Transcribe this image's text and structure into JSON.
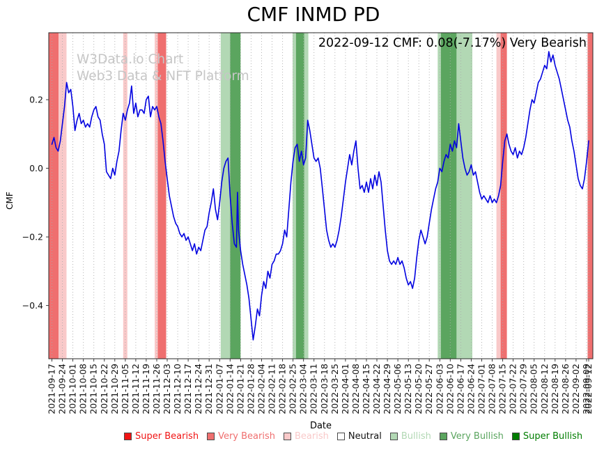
{
  "chart_data": {
    "type": "line",
    "title": "CMF INMD PD",
    "subtitle": "2022-09-12 CMF: 0.08(-7.17%) Very Bearish",
    "watermark": [
      "W3Data.io Chart",
      "Web3 Data & NFT Platform"
    ],
    "xlabel": "Date",
    "ylabel": "CMF",
    "series_name": "CMF",
    "x_range": [
      -1.5,
      258
    ],
    "y_range": [
      -0.555,
      0.395
    ],
    "y_ticks": [
      {
        "value": 0.2,
        "label": "0.2"
      },
      {
        "value": 0.0,
        "label": "0.0"
      },
      {
        "value": -0.2,
        "label": "−0.2"
      },
      {
        "value": -0.4,
        "label": "−0.4"
      }
    ],
    "x_ticks": [
      [
        0,
        "2021-09-17"
      ],
      [
        5,
        "2021-09-24"
      ],
      [
        10,
        "2021-10-01"
      ],
      [
        15,
        "2021-10-08"
      ],
      [
        20,
        "2021-10-15"
      ],
      [
        25,
        "2021-10-22"
      ],
      [
        30,
        "2021-10-29"
      ],
      [
        35,
        "2021-11-05"
      ],
      [
        40,
        "2021-11-12"
      ],
      [
        45,
        "2021-11-19"
      ],
      [
        50,
        "2021-11-26"
      ],
      [
        55,
        "2021-12-03"
      ],
      [
        60,
        "2021-12-10"
      ],
      [
        65,
        "2021-12-17"
      ],
      [
        70,
        "2021-12-24"
      ],
      [
        75,
        "2021-12-31"
      ],
      [
        80,
        "2022-01-07"
      ],
      [
        85,
        "2022-01-14"
      ],
      [
        90,
        "2022-01-21"
      ],
      [
        95,
        "2022-01-28"
      ],
      [
        100,
        "2022-02-04"
      ],
      [
        105,
        "2022-02-11"
      ],
      [
        110,
        "2022-02-18"
      ],
      [
        115,
        "2022-02-25"
      ],
      [
        120,
        "2022-03-04"
      ],
      [
        125,
        "2022-03-11"
      ],
      [
        130,
        "2022-03-18"
      ],
      [
        135,
        "2022-03-25"
      ],
      [
        140,
        "2022-04-01"
      ],
      [
        145,
        "2022-04-08"
      ],
      [
        150,
        "2022-04-15"
      ],
      [
        155,
        "2022-04-22"
      ],
      [
        160,
        "2022-04-29"
      ],
      [
        165,
        "2022-05-06"
      ],
      [
        170,
        "2022-05-13"
      ],
      [
        175,
        "2022-05-20"
      ],
      [
        180,
        "2022-05-27"
      ],
      [
        185,
        "2022-06-03"
      ],
      [
        190,
        "2022-06-10"
      ],
      [
        195,
        "2022-06-17"
      ],
      [
        200,
        "2022-06-24"
      ],
      [
        205,
        "2022-07-01"
      ],
      [
        210,
        "2022-07-08"
      ],
      [
        215,
        "2022-07-15"
      ],
      [
        220,
        "2022-07-22"
      ],
      [
        225,
        "2022-07-29"
      ],
      [
        230,
        "2022-08-05"
      ],
      [
        235,
        "2022-08-12"
      ],
      [
        240,
        "2022-08-19"
      ],
      [
        245,
        "2022-08-26"
      ],
      [
        250,
        "2022-09-02"
      ],
      [
        255,
        "2022-09-09"
      ],
      [
        256,
        "2022-09-12"
      ]
    ],
    "line": {
      "color": "#0000e0",
      "width": 1.6
    },
    "grid": {
      "vertical": true,
      "horizontal": false,
      "color": "#ababab"
    },
    "points": [
      [
        0,
        0.07
      ],
      [
        1,
        0.09
      ],
      [
        2,
        0.06
      ],
      [
        3,
        0.05
      ],
      [
        4,
        0.08
      ],
      [
        5,
        0.13
      ],
      [
        6,
        0.18
      ],
      [
        7,
        0.25
      ],
      [
        8,
        0.22
      ],
      [
        9,
        0.23
      ],
      [
        10,
        0.18
      ],
      [
        11,
        0.11
      ],
      [
        12,
        0.14
      ],
      [
        13,
        0.16
      ],
      [
        14,
        0.13
      ],
      [
        15,
        0.14
      ],
      [
        16,
        0.12
      ],
      [
        17,
        0.13
      ],
      [
        18,
        0.12
      ],
      [
        19,
        0.15
      ],
      [
        20,
        0.17
      ],
      [
        21,
        0.18
      ],
      [
        22,
        0.15
      ],
      [
        23,
        0.14
      ],
      [
        24,
        0.1
      ],
      [
        25,
        0.07
      ],
      [
        26,
        -0.01
      ],
      [
        27,
        -0.02
      ],
      [
        28,
        -0.03
      ],
      [
        29,
        0.0
      ],
      [
        30,
        -0.02
      ],
      [
        31,
        0.02
      ],
      [
        32,
        0.05
      ],
      [
        33,
        0.11
      ],
      [
        34,
        0.16
      ],
      [
        35,
        0.14
      ],
      [
        36,
        0.17
      ],
      [
        37,
        0.19
      ],
      [
        38,
        0.24
      ],
      [
        39,
        0.16
      ],
      [
        40,
        0.19
      ],
      [
        41,
        0.15
      ],
      [
        42,
        0.17
      ],
      [
        43,
        0.17
      ],
      [
        44,
        0.16
      ],
      [
        45,
        0.2
      ],
      [
        46,
        0.21
      ],
      [
        47,
        0.15
      ],
      [
        48,
        0.18
      ],
      [
        49,
        0.17
      ],
      [
        50,
        0.18
      ],
      [
        51,
        0.15
      ],
      [
        52,
        0.13
      ],
      [
        53,
        0.08
      ],
      [
        54,
        0.02
      ],
      [
        55,
        -0.03
      ],
      [
        56,
        -0.08
      ],
      [
        57,
        -0.11
      ],
      [
        58,
        -0.14
      ],
      [
        59,
        -0.16
      ],
      [
        60,
        -0.17
      ],
      [
        61,
        -0.19
      ],
      [
        62,
        -0.2
      ],
      [
        63,
        -0.19
      ],
      [
        64,
        -0.21
      ],
      [
        65,
        -0.2
      ],
      [
        66,
        -0.22
      ],
      [
        67,
        -0.24
      ],
      [
        68,
        -0.22
      ],
      [
        69,
        -0.25
      ],
      [
        70,
        -0.23
      ],
      [
        71,
        -0.24
      ],
      [
        72,
        -0.21
      ],
      [
        73,
        -0.18
      ],
      [
        74,
        -0.17
      ],
      [
        75,
        -0.13
      ],
      [
        76,
        -0.1
      ],
      [
        77,
        -0.06
      ],
      [
        78,
        -0.12
      ],
      [
        79,
        -0.15
      ],
      [
        80,
        -0.1
      ],
      [
        81,
        -0.04
      ],
      [
        82,
        0.0
      ],
      [
        83,
        0.02
      ],
      [
        84,
        0.03
      ],
      [
        85,
        -0.08
      ],
      [
        86,
        -0.16
      ],
      [
        87,
        -0.22
      ],
      [
        88,
        -0.23
      ],
      [
        88.5,
        -0.07
      ],
      [
        89,
        -0.18
      ],
      [
        90,
        -0.24
      ],
      [
        91,
        -0.28
      ],
      [
        92,
        -0.31
      ],
      [
        93,
        -0.34
      ],
      [
        94,
        -0.38
      ],
      [
        95,
        -0.44
      ],
      [
        96,
        -0.5
      ],
      [
        97,
        -0.46
      ],
      [
        98,
        -0.41
      ],
      [
        99,
        -0.43
      ],
      [
        100,
        -0.37
      ],
      [
        101,
        -0.33
      ],
      [
        102,
        -0.35
      ],
      [
        103,
        -0.3
      ],
      [
        104,
        -0.32
      ],
      [
        105,
        -0.28
      ],
      [
        106,
        -0.27
      ],
      [
        107,
        -0.25
      ],
      [
        108,
        -0.25
      ],
      [
        109,
        -0.24
      ],
      [
        110,
        -0.22
      ],
      [
        111,
        -0.18
      ],
      [
        112,
        -0.2
      ],
      [
        113,
        -0.12
      ],
      [
        114,
        -0.04
      ],
      [
        115,
        0.02
      ],
      [
        116,
        0.06
      ],
      [
        117,
        0.07
      ],
      [
        118,
        0.02
      ],
      [
        119,
        0.05
      ],
      [
        120,
        0.01
      ],
      [
        121,
        0.03
      ],
      [
        122,
        0.14
      ],
      [
        123,
        0.11
      ],
      [
        124,
        0.07
      ],
      [
        125,
        0.03
      ],
      [
        126,
        0.02
      ],
      [
        127,
        0.03
      ],
      [
        128,
        0.0
      ],
      [
        129,
        -0.06
      ],
      [
        130,
        -0.12
      ],
      [
        131,
        -0.18
      ],
      [
        132,
        -0.21
      ],
      [
        133,
        -0.23
      ],
      [
        134,
        -0.22
      ],
      [
        135,
        -0.23
      ],
      [
        136,
        -0.21
      ],
      [
        137,
        -0.18
      ],
      [
        138,
        -0.14
      ],
      [
        139,
        -0.09
      ],
      [
        140,
        -0.04
      ],
      [
        141,
        0.0
      ],
      [
        142,
        0.04
      ],
      [
        143,
        0.01
      ],
      [
        144,
        0.05
      ],
      [
        145,
        0.08
      ],
      [
        146,
        0.0
      ],
      [
        147,
        -0.06
      ],
      [
        148,
        -0.05
      ],
      [
        149,
        -0.07
      ],
      [
        150,
        -0.04
      ],
      [
        151,
        -0.07
      ],
      [
        152,
        -0.03
      ],
      [
        153,
        -0.06
      ],
      [
        154,
        -0.02
      ],
      [
        155,
        -0.05
      ],
      [
        156,
        -0.01
      ],
      [
        157,
        -0.04
      ],
      [
        158,
        -0.11
      ],
      [
        159,
        -0.18
      ],
      [
        160,
        -0.24
      ],
      [
        161,
        -0.27
      ],
      [
        162,
        -0.28
      ],
      [
        163,
        -0.27
      ],
      [
        164,
        -0.28
      ],
      [
        165,
        -0.26
      ],
      [
        166,
        -0.28
      ],
      [
        167,
        -0.27
      ],
      [
        168,
        -0.29
      ],
      [
        169,
        -0.32
      ],
      [
        170,
        -0.34
      ],
      [
        171,
        -0.33
      ],
      [
        172,
        -0.35
      ],
      [
        173,
        -0.32
      ],
      [
        174,
        -0.26
      ],
      [
        175,
        -0.21
      ],
      [
        176,
        -0.18
      ],
      [
        177,
        -0.2
      ],
      [
        178,
        -0.22
      ],
      [
        179,
        -0.2
      ],
      [
        180,
        -0.16
      ],
      [
        181,
        -0.12
      ],
      [
        182,
        -0.09
      ],
      [
        183,
        -0.06
      ],
      [
        184,
        -0.04
      ],
      [
        185,
        0.0
      ],
      [
        186,
        -0.01
      ],
      [
        187,
        0.02
      ],
      [
        188,
        0.04
      ],
      [
        189,
        0.03
      ],
      [
        190,
        0.07
      ],
      [
        191,
        0.05
      ],
      [
        192,
        0.08
      ],
      [
        193,
        0.06
      ],
      [
        194,
        0.13
      ],
      [
        195,
        0.08
      ],
      [
        196,
        0.03
      ],
      [
        197,
        0.0
      ],
      [
        198,
        -0.02
      ],
      [
        199,
        -0.01
      ],
      [
        200,
        0.01
      ],
      [
        201,
        -0.02
      ],
      [
        202,
        -0.01
      ],
      [
        203,
        -0.04
      ],
      [
        204,
        -0.07
      ],
      [
        205,
        -0.09
      ],
      [
        206,
        -0.08
      ],
      [
        207,
        -0.09
      ],
      [
        208,
        -0.1
      ],
      [
        209,
        -0.08
      ],
      [
        210,
        -0.1
      ],
      [
        211,
        -0.09
      ],
      [
        212,
        -0.1
      ],
      [
        213,
        -0.08
      ],
      [
        214,
        -0.05
      ],
      [
        215,
        0.02
      ],
      [
        216,
        0.08
      ],
      [
        217,
        0.1
      ],
      [
        218,
        0.07
      ],
      [
        219,
        0.05
      ],
      [
        220,
        0.04
      ],
      [
        221,
        0.06
      ],
      [
        222,
        0.03
      ],
      [
        223,
        0.05
      ],
      [
        224,
        0.04
      ],
      [
        225,
        0.06
      ],
      [
        226,
        0.09
      ],
      [
        227,
        0.13
      ],
      [
        228,
        0.17
      ],
      [
        229,
        0.2
      ],
      [
        230,
        0.19
      ],
      [
        231,
        0.22
      ],
      [
        232,
        0.25
      ],
      [
        233,
        0.26
      ],
      [
        234,
        0.28
      ],
      [
        235,
        0.3
      ],
      [
        236,
        0.29
      ],
      [
        237,
        0.34
      ],
      [
        238,
        0.31
      ],
      [
        239,
        0.33
      ],
      [
        240,
        0.3
      ],
      [
        241,
        0.28
      ],
      [
        242,
        0.26
      ],
      [
        243,
        0.23
      ],
      [
        244,
        0.2
      ],
      [
        245,
        0.17
      ],
      [
        246,
        0.14
      ],
      [
        247,
        0.12
      ],
      [
        248,
        0.08
      ],
      [
        249,
        0.05
      ],
      [
        250,
        0.01
      ],
      [
        251,
        -0.03
      ],
      [
        252,
        -0.05
      ],
      [
        253,
        -0.06
      ],
      [
        254,
        -0.03
      ],
      [
        255,
        0.02
      ],
      [
        256,
        0.08
      ]
    ],
    "signal_regions": [
      [
        -1.5,
        3.2,
        "Very Bearish"
      ],
      [
        3.2,
        7,
        "Bearish"
      ],
      [
        34,
        36,
        "Bearish"
      ],
      [
        49,
        50.5,
        "Bearish"
      ],
      [
        50.5,
        54.5,
        "Very Bearish"
      ],
      [
        80.5,
        85,
        "Bullish"
      ],
      [
        85,
        90,
        "Very Bullish"
      ],
      [
        114.8,
        116.4,
        "Bullish"
      ],
      [
        116.4,
        120.4,
        "Very Bullish"
      ],
      [
        120.4,
        122.3,
        "Bullish"
      ],
      [
        184,
        185.5,
        "Bullish"
      ],
      [
        185.5,
        193,
        "Very Bullish"
      ],
      [
        193,
        200.5,
        "Bullish"
      ],
      [
        212,
        214,
        "Bearish"
      ],
      [
        214,
        217,
        "Very Bearish"
      ],
      [
        255.5,
        258,
        "Very Bearish"
      ]
    ],
    "category_colors": {
      "Super Bearish": "#f01414",
      "Very Bearish": "#ef6f6f",
      "Bearish": "#f9c9c9",
      "Neutral": "#ffffff",
      "Bullish": "#b2d8b4",
      "Very Bullish": "#5ba55f",
      "Super Bullish": "#007d00"
    },
    "legend": [
      "Super Bearish",
      "Very Bearish",
      "Bearish",
      "Neutral",
      "Bullish",
      "Very Bullish",
      "Super Bullish"
    ],
    "legend_position": "bottom"
  }
}
